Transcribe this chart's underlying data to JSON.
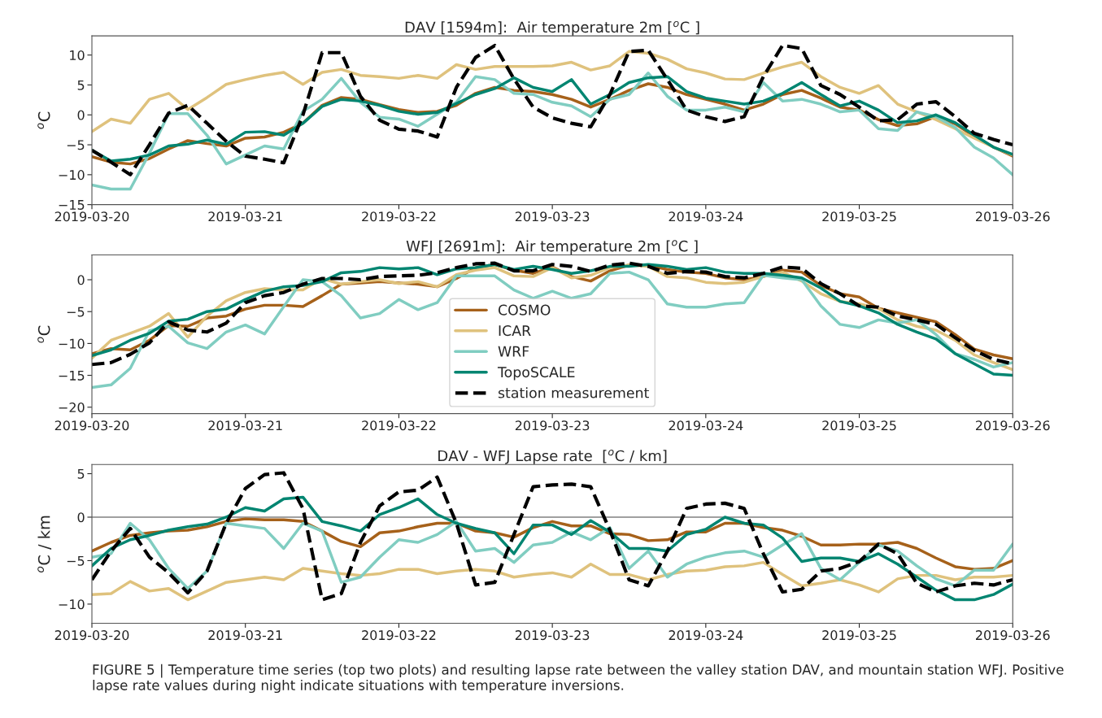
{
  "chart_data": [
    {
      "type": "line",
      "title": "DAV [1594m]:  Air temperature 2m [$^{o}$C ]",
      "ylabel": "$^{o}$C",
      "x": [
        "2019-03-20T00:00",
        "2019-03-20T03:00",
        "2019-03-20T06:00",
        "2019-03-20T09:00",
        "2019-03-20T12:00",
        "2019-03-20T15:00",
        "2019-03-20T18:00",
        "2019-03-20T21:00",
        "2019-03-21T00:00",
        "2019-03-21T03:00",
        "2019-03-21T06:00",
        "2019-03-21T09:00",
        "2019-03-21T12:00",
        "2019-03-21T15:00",
        "2019-03-21T18:00",
        "2019-03-21T21:00",
        "2019-03-22T00:00",
        "2019-03-22T03:00",
        "2019-03-22T06:00",
        "2019-03-22T09:00",
        "2019-03-22T12:00",
        "2019-03-22T15:00",
        "2019-03-22T18:00",
        "2019-03-22T21:00",
        "2019-03-23T00:00",
        "2019-03-23T03:00",
        "2019-03-23T06:00",
        "2019-03-23T09:00",
        "2019-03-23T12:00",
        "2019-03-23T15:00",
        "2019-03-23T18:00",
        "2019-03-23T21:00",
        "2019-03-24T00:00",
        "2019-03-24T03:00",
        "2019-03-24T06:00",
        "2019-03-24T09:00",
        "2019-03-24T12:00",
        "2019-03-24T15:00",
        "2019-03-24T18:00",
        "2019-03-24T21:00",
        "2019-03-25T00:00",
        "2019-03-25T03:00",
        "2019-03-25T06:00",
        "2019-03-25T09:00",
        "2019-03-25T12:00",
        "2019-03-25T15:00",
        "2019-03-25T18:00",
        "2019-03-25T21:00",
        "2019-03-26T00:00"
      ],
      "xlim": [
        "2019-03-20",
        "2019-03-26"
      ],
      "xticks": [
        "2019-03-20",
        "2019-03-21",
        "2019-03-22",
        "2019-03-23",
        "2019-03-24",
        "2019-03-25",
        "2019-03-26"
      ],
      "ylim": [
        -15,
        13.2
      ],
      "yticks": [
        -15,
        -10,
        -5,
        0,
        5,
        10
      ],
      "series": [
        {
          "color": "#a6611a",
          "line_style": "solid",
          "values": [
            -7,
            -7.9,
            -8.2,
            -7.3,
            -5.7,
            -4.3,
            -4.8,
            -5.2,
            -3.9,
            -3.7,
            -2.9,
            -1.4,
            1.6,
            2.9,
            2.6,
            1.7,
            0.9,
            0.4,
            0.6,
            1.6,
            3.6,
            4.6,
            4.1,
            3.9,
            3.4,
            2.6,
            1.3,
            2.6,
            4.1,
            5.2,
            4.6,
            3.4,
            2.6,
            1.8,
            0.8,
            1.8,
            3.4,
            4.1,
            2.8,
            1.3,
            0.8,
            -0.8,
            -1.8,
            -1.5,
            -0.3,
            -1.5,
            -3.6,
            -5.4,
            -6.9
          ]
        },
        {
          "color": "#dfc27d",
          "line_style": "solid",
          "values": [
            -2.8,
            -0.7,
            -1.4,
            2.6,
            3.6,
            0.9,
            2.9,
            5.1,
            5.9,
            6.6,
            7.1,
            5.1,
            7.1,
            7.6,
            6.6,
            6.4,
            6.1,
            6.6,
            6.1,
            8.4,
            7.6,
            8.1,
            8.1,
            8.1,
            8.2,
            8.8,
            7.5,
            8.2,
            10.6,
            10.3,
            9.3,
            7.7,
            7,
            6,
            5.9,
            7,
            8,
            8.8,
            6.4,
            4.6,
            3.6,
            4.9,
            1.8,
            0.5,
            -0.8,
            -2.3,
            -3.9,
            -5.4,
            -6.7
          ]
        },
        {
          "color": "#80cdc1",
          "line_style": "solid",
          "values": [
            -11.7,
            -12.4,
            -12.4,
            -6.4,
            0.2,
            0.2,
            -3.4,
            -8.2,
            -6.7,
            -5.2,
            -5.7,
            0.6,
            2.6,
            6.1,
            2.1,
            -0.4,
            -0.7,
            -1.9,
            0.1,
            2.1,
            6.4,
            5.9,
            3.6,
            3.4,
            2.1,
            1.5,
            -0.3,
            2.6,
            3.4,
            7,
            3.1,
            0.8,
            0.8,
            1.3,
            0.5,
            5.4,
            2.3,
            2.6,
            1.8,
            0.5,
            0.8,
            -2.3,
            -2.6,
            0.5,
            -0.3,
            -2.1,
            -5.4,
            -7.2,
            -10
          ]
        },
        {
          "color": "#018571",
          "line_style": "solid",
          "values": [
            -5.9,
            -7.7,
            -7.4,
            -6.7,
            -5.2,
            -4.9,
            -4.2,
            -4.9,
            -2.9,
            -2.8,
            -3.4,
            -1.4,
            1.4,
            2.6,
            2.3,
            1.6,
            0.6,
            0.1,
            0.4,
            1.9,
            3.4,
            4.4,
            6.2,
            4.6,
            3.9,
            5.9,
            1.8,
            3.4,
            5.4,
            6.2,
            6.4,
            3.9,
            2.8,
            2.3,
            1.8,
            2.3,
            3.6,
            5.4,
            3.4,
            1.5,
            2.3,
            0.8,
            -1.3,
            -1,
            0,
            -1.3,
            -3.4,
            -5.4,
            -6.6
          ]
        },
        {
          "color": "#000000",
          "line_style": "dashed",
          "values": [
            -5.9,
            -7.9,
            -10,
            -5,
            0.3,
            1.6,
            -1.4,
            -4.4,
            -6.9,
            -7.4,
            -8,
            0,
            10.4,
            10.4,
            3.1,
            -0.9,
            -2.4,
            -2.7,
            -3.7,
            4.6,
            9.6,
            11.6,
            6,
            1.3,
            -0.5,
            -1.4,
            -2,
            3.4,
            10.6,
            10.8,
            5.9,
            0.8,
            -0.3,
            -1.1,
            -0.3,
            6.4,
            11.6,
            11.1,
            4.9,
            3.4,
            1.3,
            -1,
            -0.8,
            1.8,
            2.2,
            -0.3,
            -3.1,
            -4.1,
            -5
          ]
        }
      ]
    },
    {
      "type": "line",
      "title": "WFJ [2691m]:  Air temperature 2m [$^{o}$C ]",
      "ylabel": "$^{o}$C",
      "legend": "bottom",
      "x": [
        "2019-03-20T00:00",
        "2019-03-20T03:00",
        "2019-03-20T06:00",
        "2019-03-20T09:00",
        "2019-03-20T12:00",
        "2019-03-20T15:00",
        "2019-03-20T18:00",
        "2019-03-20T21:00",
        "2019-03-21T00:00",
        "2019-03-21T03:00",
        "2019-03-21T06:00",
        "2019-03-21T09:00",
        "2019-03-21T12:00",
        "2019-03-21T15:00",
        "2019-03-21T18:00",
        "2019-03-21T21:00",
        "2019-03-22T00:00",
        "2019-03-22T03:00",
        "2019-03-22T06:00",
        "2019-03-22T09:00",
        "2019-03-22T12:00",
        "2019-03-22T15:00",
        "2019-03-22T18:00",
        "2019-03-22T21:00",
        "2019-03-23T00:00",
        "2019-03-23T03:00",
        "2019-03-23T06:00",
        "2019-03-23T09:00",
        "2019-03-23T12:00",
        "2019-03-23T15:00",
        "2019-03-23T18:00",
        "2019-03-23T21:00",
        "2019-03-24T00:00",
        "2019-03-24T03:00",
        "2019-03-24T06:00",
        "2019-03-24T09:00",
        "2019-03-24T12:00",
        "2019-03-24T15:00",
        "2019-03-24T18:00",
        "2019-03-24T21:00",
        "2019-03-25T00:00",
        "2019-03-25T03:00",
        "2019-03-25T06:00",
        "2019-03-25T09:00",
        "2019-03-25T12:00",
        "2019-03-25T15:00",
        "2019-03-25T18:00",
        "2019-03-25T21:00",
        "2019-03-26T00:00"
      ],
      "xlim": [
        "2019-03-20",
        "2019-03-26"
      ],
      "xticks": [
        "2019-03-20",
        "2019-03-21",
        "2019-03-22",
        "2019-03-23",
        "2019-03-24",
        "2019-03-25",
        "2019-03-26"
      ],
      "ylim": [
        -21,
        3.9
      ],
      "yticks": [
        -20,
        -15,
        -10,
        -5,
        0
      ],
      "series": [
        {
          "name": "COSMO",
          "color": "#a6611a",
          "line_style": "solid",
          "values": [
            -11.6,
            -10.8,
            -11,
            -9.5,
            -7.2,
            -7.3,
            -6,
            -5.7,
            -4.6,
            -4,
            -4,
            -4.2,
            -2.5,
            -0.7,
            -0.5,
            -0.3,
            -0.5,
            -0.7,
            -1.1,
            0.2,
            1.9,
            2.4,
            1.5,
            1,
            2,
            0.5,
            -0.2,
            1.4,
            2.3,
            2.3,
            1.6,
            1.2,
            1,
            0.3,
            0,
            0.5,
            1.5,
            1.2,
            -0.9,
            -2.2,
            -2.7,
            -4.5,
            -5.2,
            -5.9,
            -6.6,
            -8.6,
            -10.9,
            -11.8,
            -12.4
          ]
        },
        {
          "name": "ICAR",
          "color": "#dfc27d",
          "line_style": "solid",
          "values": [
            -12.3,
            -9.5,
            -8.4,
            -7.3,
            -5.3,
            -9,
            -5.7,
            -3.3,
            -2,
            -1.4,
            -1.6,
            -1.6,
            0.2,
            -0.7,
            -0.3,
            0,
            -0.6,
            -0.3,
            -1.1,
            0.8,
            1.5,
            1.9,
            0.6,
            0.5,
            1.9,
            0.3,
            0.7,
            1.9,
            2.3,
            2.1,
            0.5,
            0.3,
            -0.4,
            -0.6,
            -0.4,
            0.5,
            1.2,
            -0.2,
            -2.2,
            -3.4,
            -3.8,
            -4.5,
            -6.3,
            -7.3,
            -7.9,
            -9.5,
            -11.8,
            -13,
            -14.1
          ]
        },
        {
          "name": "WRF",
          "color": "#80cdc1",
          "line_style": "solid",
          "values": [
            -16.9,
            -16.5,
            -13.9,
            -8,
            -7.3,
            -9.9,
            -10.8,
            -8.2,
            -7.1,
            -8.5,
            -4.2,
            0,
            -0.3,
            -2.5,
            -6,
            -5.3,
            -3.1,
            -4.7,
            -3.6,
            0.6,
            0.6,
            0.6,
            -1.6,
            -2.9,
            -1.8,
            -2.9,
            -2.2,
            1,
            1.2,
            0,
            -3.8,
            -4.3,
            -4.3,
            -3.8,
            -3.6,
            0.7,
            0.3,
            0,
            -4.1,
            -7,
            -7.5,
            -6.3,
            -6.8,
            -6.3,
            -8.6,
            -11.6,
            -12.5,
            -13.7,
            -13
          ]
        },
        {
          "name": "TopoSCALE",
          "color": "#018571",
          "line_style": "solid",
          "values": [
            -11.9,
            -11,
            -9.5,
            -8.4,
            -6.5,
            -6.2,
            -5,
            -4.6,
            -3.1,
            -1.8,
            -1.1,
            -0.9,
            -0.3,
            1.1,
            1.3,
            1.9,
            1.7,
            1.9,
            0.8,
            1.7,
            1.9,
            2.4,
            1.6,
            2.1,
            1.6,
            1,
            1.4,
            2.1,
            2.1,
            2.4,
            2.1,
            1.6,
            1.9,
            1.2,
            1,
            1,
            0.7,
            0.3,
            -1.3,
            -3.4,
            -4.1,
            -5.2,
            -7,
            -8.2,
            -9.3,
            -11.6,
            -13.2,
            -14.8,
            -15
          ]
        },
        {
          "name": "station measurement",
          "color": "#000000",
          "line_style": "dashed",
          "values": [
            -13.3,
            -13,
            -11.7,
            -9.9,
            -6.6,
            -7.9,
            -8.2,
            -6.8,
            -3.6,
            -2.5,
            -2,
            -0.7,
            0.2,
            0.2,
            0,
            0.5,
            0.6,
            0.7,
            1.1,
            1.9,
            2.5,
            2.6,
            1.4,
            1.4,
            2.4,
            2.1,
            1.3,
            2.3,
            2.6,
            2.1,
            1,
            1.3,
            1.2,
            0.5,
            0.3,
            1,
            2,
            1.8,
            -0.6,
            -2.2,
            -4.1,
            -4.3,
            -5.7,
            -6.3,
            -7,
            -9.1,
            -11.1,
            -12.5,
            -13.2
          ]
        }
      ]
    },
    {
      "type": "line",
      "title": "DAV - WFJ Lapse rate  [$^{o}$C / km]",
      "ylabel": "$^{o}$C / km",
      "x": [
        "2019-03-20T00:00",
        "2019-03-20T03:00",
        "2019-03-20T06:00",
        "2019-03-20T09:00",
        "2019-03-20T12:00",
        "2019-03-20T15:00",
        "2019-03-20T18:00",
        "2019-03-20T21:00",
        "2019-03-21T00:00",
        "2019-03-21T03:00",
        "2019-03-21T06:00",
        "2019-03-21T09:00",
        "2019-03-21T12:00",
        "2019-03-21T15:00",
        "2019-03-21T18:00",
        "2019-03-21T21:00",
        "2019-03-22T00:00",
        "2019-03-22T03:00",
        "2019-03-22T06:00",
        "2019-03-22T09:00",
        "2019-03-22T12:00",
        "2019-03-22T15:00",
        "2019-03-22T18:00",
        "2019-03-22T21:00",
        "2019-03-23T00:00",
        "2019-03-23T03:00",
        "2019-03-23T06:00",
        "2019-03-23T09:00",
        "2019-03-23T12:00",
        "2019-03-23T15:00",
        "2019-03-23T18:00",
        "2019-03-23T21:00",
        "2019-03-24T00:00",
        "2019-03-24T03:00",
        "2019-03-24T06:00",
        "2019-03-24T09:00",
        "2019-03-24T12:00",
        "2019-03-24T15:00",
        "2019-03-24T18:00",
        "2019-03-24T21:00",
        "2019-03-25T00:00",
        "2019-03-25T03:00",
        "2019-03-25T06:00",
        "2019-03-25T09:00",
        "2019-03-25T12:00",
        "2019-03-25T15:00",
        "2019-03-25T18:00",
        "2019-03-25T21:00",
        "2019-03-26T00:00"
      ],
      "xlim": [
        "2019-03-20",
        "2019-03-26"
      ],
      "xticks": [
        "2019-03-20",
        "2019-03-21",
        "2019-03-22",
        "2019-03-23",
        "2019-03-24",
        "2019-03-25",
        "2019-03-26"
      ],
      "ylim": [
        -12.2,
        6.05
      ],
      "yticks": [
        -10,
        -5,
        0,
        5
      ],
      "ref_lines": [
        {
          "axis": "y",
          "value": 0,
          "color": "#808080"
        }
      ],
      "annotations": [
        "FIGURE 5 | Temperature time series (top two plots) and resulting lapse rate between the valley station DAV, and mountain station WFJ. Positive lapse rate values during night indicate situations with temperature inversions."
      ],
      "series": [
        {
          "color": "#a6611a",
          "line_style": "solid",
          "values": [
            -3.9,
            -2.9,
            -2.1,
            -1.8,
            -1.6,
            -1.5,
            -1.1,
            -0.5,
            -0.2,
            -0.3,
            -0.3,
            -0.5,
            -1.6,
            -2.8,
            -3.4,
            -1.8,
            -1.6,
            -1.1,
            -0.7,
            -0.7,
            -1.6,
            -1.8,
            -2.3,
            -1.2,
            -0.5,
            -1,
            -1,
            -1.9,
            -2,
            -2.7,
            -2.6,
            -1.7,
            -1.7,
            -0.7,
            -0.7,
            -1.2,
            -1.5,
            -2.2,
            -3.2,
            -3.2,
            -3.1,
            -3.1,
            -2.9,
            -3.6,
            -4.7,
            -5.7,
            -6,
            -5.9,
            -5
          ]
        },
        {
          "color": "#dfc27d",
          "line_style": "solid",
          "values": [
            -8.9,
            -8.8,
            -7.4,
            -8.5,
            -8.2,
            -9.5,
            -8.5,
            -7.5,
            -7.2,
            -6.9,
            -7.2,
            -5.9,
            -6.2,
            -6.5,
            -6.7,
            -6.5,
            -6,
            -6,
            -6.5,
            -6.2,
            -6,
            -6.2,
            -6.9,
            -6.6,
            -6.4,
            -6.9,
            -5.4,
            -6.6,
            -6.6,
            -7.2,
            -6.6,
            -6.2,
            -6.1,
            -5.7,
            -5.6,
            -5.2,
            -6.6,
            -7.9,
            -7.6,
            -7.2,
            -7.8,
            -8.6,
            -7.1,
            -6.7,
            -6.7,
            -7.2,
            -6.9,
            -6.9,
            -6.7
          ]
        },
        {
          "color": "#80cdc1",
          "line_style": "solid",
          "values": [
            -4.6,
            -4.2,
            -0.7,
            -2.6,
            -5.9,
            -8.2,
            -6.2,
            -0.7,
            -1,
            -1.3,
            -3.6,
            -0.7,
            -1.6,
            -7.5,
            -6.9,
            -4.6,
            -2.6,
            -2.9,
            -2,
            -0.5,
            -3.9,
            -3.6,
            -5.2,
            -3.2,
            -2.9,
            -1.7,
            -2.6,
            -1.2,
            -5.9,
            -3.9,
            -6.9,
            -5.4,
            -4.6,
            -4.1,
            -3.9,
            -4.6,
            -3.2,
            -1.9,
            -5.9,
            -7.2,
            -5.2,
            -3.2,
            -3.9,
            -5.6,
            -7.1,
            -7.9,
            -6.1,
            -6.1,
            -3.1
          ]
        },
        {
          "color": "#018571",
          "line_style": "solid",
          "values": [
            -5.6,
            -3.6,
            -2.6,
            -2.1,
            -1.5,
            -1.1,
            -0.8,
            0,
            1.1,
            0.7,
            2.1,
            2.3,
            -0.5,
            -1,
            -1.6,
            0.3,
            1.1,
            2.1,
            0.3,
            -0.7,
            -1.3,
            -1.8,
            -4.2,
            -0.9,
            -0.9,
            -2,
            -0.4,
            -1.7,
            -3.6,
            -3.6,
            -3.9,
            -2,
            -1.4,
            0,
            -0.7,
            -0.9,
            -2.4,
            -5.1,
            -4.7,
            -4.7,
            -5.1,
            -4.2,
            -5.4,
            -6.9,
            -8.4,
            -9.5,
            -9.5,
            -8.9,
            -7.7
          ]
        },
        {
          "color": "#000000",
          "line_style": "dashed",
          "values": [
            -7.2,
            -3.9,
            -1.3,
            -4.6,
            -6.4,
            -8.7,
            -6.2,
            -0.7,
            3.3,
            4.9,
            5.1,
            1,
            -9.5,
            -8.8,
            -2.9,
            1.3,
            2.9,
            3.1,
            4.6,
            -0.7,
            -7.8,
            -7.5,
            -2,
            3.5,
            3.7,
            3.8,
            3.5,
            -1.5,
            -7.2,
            -7.9,
            -3.9,
            1,
            1.5,
            1.6,
            1,
            -4.2,
            -8.6,
            -8.3,
            -6.2,
            -5.9,
            -5.1,
            -3.1,
            -4.2,
            -7.6,
            -8.6,
            -7.9,
            -7.6,
            -7.8,
            -7.2
          ]
        }
      ]
    }
  ]
}
